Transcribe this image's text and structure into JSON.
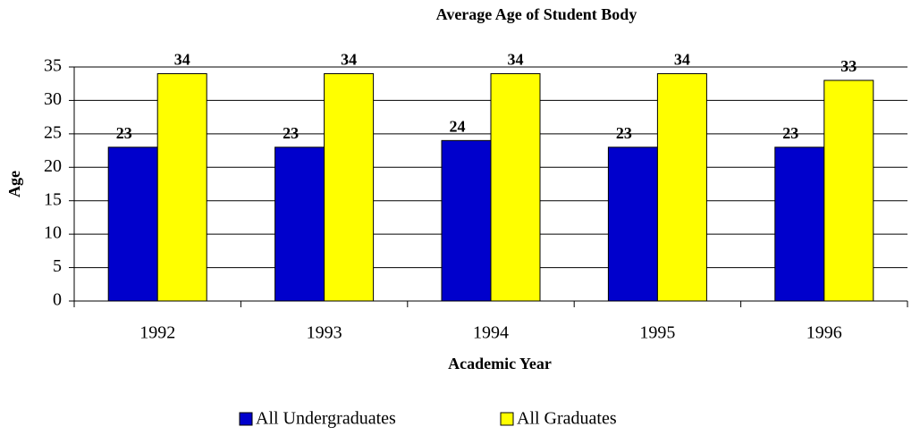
{
  "chart_data": {
    "type": "bar",
    "title": "Average Age of Student Body",
    "x_label": "Academic Year",
    "y_label": "Age",
    "categories": [
      "1992",
      "1993",
      "1994",
      "1995",
      "1996"
    ],
    "series": [
      {
        "name": "All Undergraduates",
        "color": "#0000cc",
        "values": [
          23,
          23,
          24,
          23,
          23
        ]
      },
      {
        "name": "All Graduates",
        "color": "#ffff00",
        "values": [
          34,
          34,
          34,
          34,
          33
        ]
      }
    ],
    "ylim": [
      0,
      35
    ],
    "yticks": [
      0,
      5,
      10,
      15,
      20,
      25,
      30,
      35
    ],
    "grid": true,
    "legend": "bottom"
  }
}
